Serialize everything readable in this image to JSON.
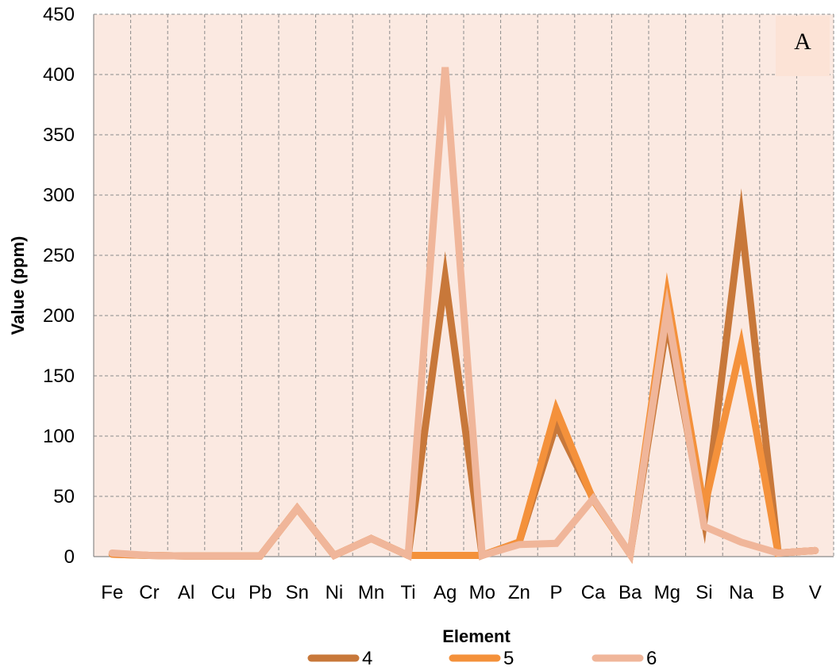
{
  "chart_data": {
    "type": "line",
    "panel_label": "A",
    "xlabel": "Element",
    "ylabel": "Value (ppm)",
    "ylim": [
      0,
      450
    ],
    "yticks": [
      0,
      50,
      100,
      150,
      200,
      250,
      300,
      350,
      400,
      450
    ],
    "categories": [
      "Fe",
      "Cr",
      "Al",
      "Cu",
      "Pb",
      "Sn",
      "Ni",
      "Mn",
      "Ti",
      "Ag",
      "Mo",
      "Zn",
      "P",
      "Ca",
      "Ba",
      "Mg",
      "Si",
      "Na",
      "B",
      "V"
    ],
    "grid": true,
    "legend_position": "bottom",
    "plot_background": "#fbe9e1",
    "series": [
      {
        "name": "4",
        "color": "#c8783a",
        "values": [
          2,
          1,
          0.5,
          0.5,
          0.5,
          40,
          1,
          15,
          1,
          231,
          1,
          12,
          110,
          48,
          2,
          195,
          30,
          280,
          3,
          5
        ]
      },
      {
        "name": "5",
        "color": "#f4913b",
        "values": [
          2,
          1,
          0.5,
          0.5,
          0.5,
          40,
          1,
          15,
          1,
          1,
          1,
          12,
          122,
          47,
          2,
          217,
          40,
          175,
          3,
          5
        ]
      },
      {
        "name": "6",
        "color": "#f0b69a",
        "values": [
          3,
          1,
          0.5,
          0.5,
          0.5,
          40,
          1,
          15,
          1,
          406,
          1,
          10,
          11,
          48,
          2,
          205,
          25,
          12,
          3,
          5
        ]
      }
    ]
  }
}
